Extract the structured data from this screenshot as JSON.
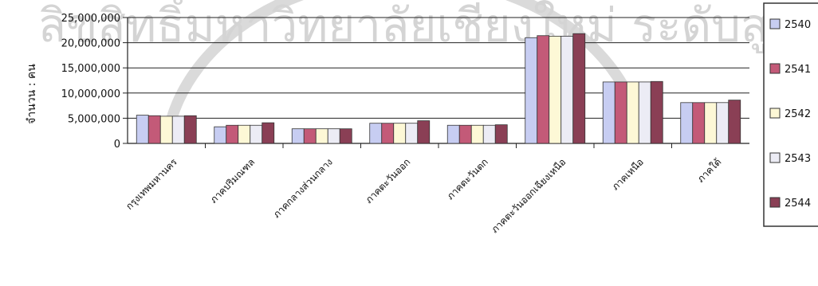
{
  "chart_data": {
    "type": "bar",
    "title": "",
    "xlabel": "",
    "ylabel": "จำนวน : คน",
    "ylim": [
      0,
      25000000
    ],
    "yticks": [
      "0",
      "5,000,000",
      "10,000,000",
      "15,000,000",
      "20,000,000",
      "25,000,000"
    ],
    "grid": true,
    "legend_position": "right",
    "categories": [
      "กรุงเทพมหานคร",
      "ภาคปริมณฑล",
      "ภาคกลางส่วนกลาง",
      "ภาคตะวันออก",
      "ภาคตะวันตก",
      "ภาคตะวันออกเฉียงเหนือ",
      "ภาคเหนือ",
      "ภาคใต้"
    ],
    "series": [
      {
        "name": "2540",
        "color": "#c7cdf2",
        "values": [
          5600000,
          3300000,
          2900000,
          4000000,
          3600000,
          21000000,
          12200000,
          8100000
        ]
      },
      {
        "name": "2541",
        "color": "#c35a78",
        "values": [
          5500000,
          3600000,
          2900000,
          4000000,
          3600000,
          21400000,
          12200000,
          8100000
        ]
      },
      {
        "name": "2542",
        "color": "#fdf8d6",
        "values": [
          5400000,
          3600000,
          2900000,
          4000000,
          3600000,
          21300000,
          12200000,
          8100000
        ]
      },
      {
        "name": "2543",
        "color": "#ececf5",
        "values": [
          5400000,
          3600000,
          2900000,
          4000000,
          3600000,
          21300000,
          12200000,
          8100000
        ]
      },
      {
        "name": "2544",
        "color": "#8a3f55",
        "values": [
          5500000,
          4100000,
          2900000,
          4500000,
          3700000,
          21800000,
          12300000,
          8600000
        ]
      }
    ],
    "watermark": "ลิขสิทธิ์มหาวิทยาลัยเชียงใหม่ ระดับสูง"
  }
}
